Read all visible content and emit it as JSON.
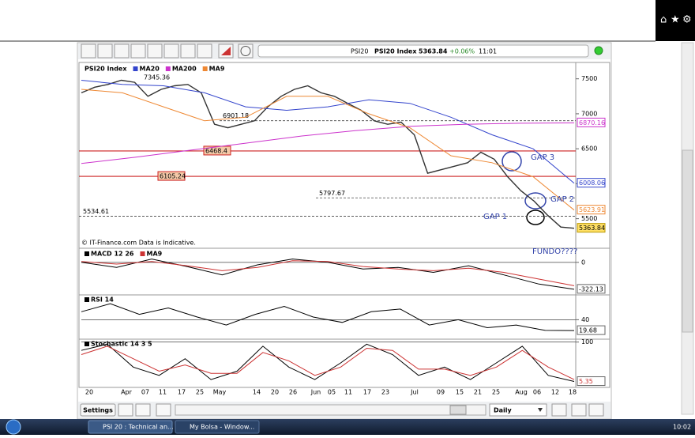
{
  "toolbar": {
    "symbol": "PSI20",
    "name": "PSI20 Index",
    "change": "+0.06%",
    "time": "11:01"
  },
  "chart_data": [
    {
      "type": "line",
      "high_label": 7345.36,
      "ylim": [
        5100,
        7700
      ],
      "yticks": [
        5500,
        6000,
        6500,
        7000,
        7500
      ],
      "levels": [
        6901.18,
        6468.4,
        6105.24,
        5797.67,
        5534.61
      ],
      "series": [
        {
          "name": "PSI20 Index",
          "color": "#333333",
          "values": [
            7300,
            7380,
            7420,
            7480,
            7450,
            7250,
            7350,
            7400,
            7420,
            7300,
            6850,
            6800,
            6850,
            6900,
            7100,
            7250,
            7350,
            7400,
            7300,
            7250,
            7150,
            7050,
            6900,
            6850,
            6880,
            6700,
            6150,
            6200,
            6250,
            6300,
            6450,
            6350,
            6100,
            5900,
            5750,
            5550,
            5380,
            5363.84
          ]
        },
        {
          "name": "MA20",
          "color": "#3344cc",
          "values": [
            7480,
            7420,
            7400,
            7300,
            7100,
            7050,
            7100,
            7200,
            7150,
            6950,
            6700,
            6500,
            6008.06
          ]
        },
        {
          "name": "MA200",
          "color": "#cc33cc",
          "values": [
            6290,
            6380,
            6480,
            6580,
            6680,
            6760,
            6820,
            6850,
            6865,
            6870.16
          ]
        },
        {
          "name": "MA9",
          "color": "#ee8833",
          "values": [
            7350,
            7300,
            7100,
            6900,
            6950,
            7250,
            7250,
            7000,
            6800,
            6400,
            6300,
            6100,
            5623.91
          ]
        }
      ],
      "annotations": [
        "GAP 3",
        "GAP 2",
        "GAP 1",
        "FUNDO????"
      ],
      "footnote": "© IT-Finance.com   Data is Indicative."
    },
    {
      "type": "line",
      "ylim": [
        -380,
        150
      ],
      "yticks": [
        0
      ],
      "series": [
        {
          "name": "MACD 12 26",
          "color": "#000000",
          "values": [
            0,
            -60,
            40,
            -50,
            -150,
            -30,
            40,
            0,
            -80,
            -60,
            -120,
            -40,
            -150,
            -260,
            -322.13
          ]
        },
        {
          "name": "MA9",
          "color": "#cc3333",
          "values": [
            10,
            -20,
            10,
            -40,
            -100,
            -60,
            20,
            10,
            -50,
            -80,
            -100,
            -70,
            -120,
            -200,
            -280
          ]
        }
      ]
    },
    {
      "type": "line",
      "ylim": [
        5,
        85
      ],
      "yticks": [
        40
      ],
      "series": [
        {
          "name": "RSI 14",
          "color": "#000000",
          "values": [
            55,
            70,
            50,
            62,
            45,
            30,
            50,
            65,
            45,
            35,
            55,
            60,
            30,
            40,
            25,
            30,
            20,
            19.68
          ]
        }
      ]
    },
    {
      "type": "line",
      "ylim": [
        -5,
        105
      ],
      "yticks": [
        100
      ],
      "series": [
        {
          "name": "Stochastic 14 3 5",
          "color": "#000000",
          "values": [
            80,
            95,
            40,
            20,
            60,
            10,
            30,
            90,
            40,
            10,
            50,
            95,
            70,
            20,
            40,
            10,
            50,
            90,
            20,
            5.35
          ]
        },
        {
          "color": "#cc3333",
          "values": [
            70,
            90,
            60,
            30,
            45,
            25,
            25,
            75,
            55,
            20,
            40,
            85,
            80,
            35,
            35,
            20,
            40,
            80,
            40,
            10
          ]
        }
      ]
    }
  ],
  "date_axis": {
    "labels": [
      "20",
      "Apr",
      "07",
      "11",
      "17",
      "25",
      "May",
      "14",
      "20",
      "26",
      "Jun",
      "05",
      "11",
      "17",
      "23",
      "Jul",
      "09",
      "15",
      "21",
      "25",
      "Aug",
      "06",
      "12",
      "18"
    ]
  },
  "bottom_bar": {
    "settings": "Settings",
    "interval": "Daily"
  },
  "taskbar": {
    "items": [
      "PSI 20 : Technical an...",
      "My Bolsa - Window..."
    ],
    "clock": "10:02"
  }
}
